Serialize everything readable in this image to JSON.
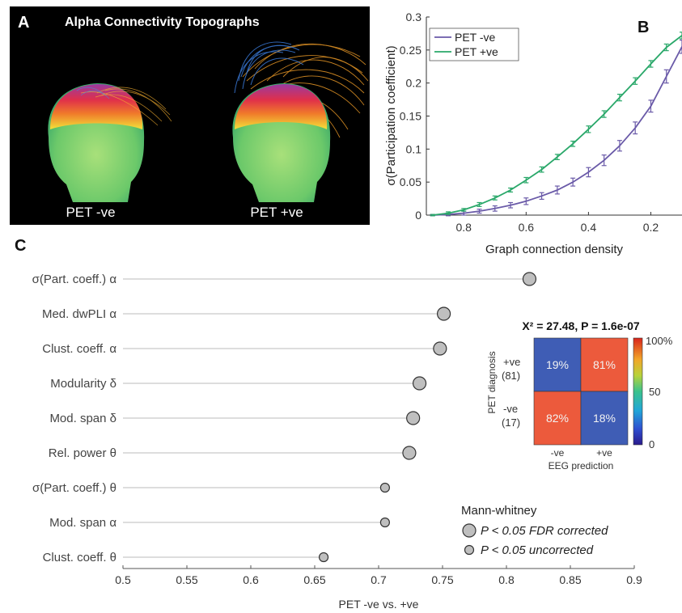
{
  "panel_labels": {
    "a": "A",
    "b": "B",
    "c": "C"
  },
  "panel_a": {
    "title": "Alpha Connectivity Topographs",
    "left_caption": "PET -ve",
    "right_caption": "PET +ve"
  },
  "colors": {
    "pet_neg": "#6a5aa8",
    "pet_pos": "#2aa86a",
    "cell_blue": "#3f5db5",
    "cell_red": "#ec5a3c",
    "marker": "#bfbfbf"
  },
  "chart_data": [
    {
      "type": "line",
      "panel": "B",
      "xlabel": "Graph connection density",
      "ylabel": "σ(Participation coefficient)",
      "x_reversed": true,
      "xlim": [
        0.92,
        0.1
      ],
      "ylim": [
        0,
        0.3
      ],
      "x_ticks": [
        0.8,
        0.6,
        0.4,
        0.2
      ],
      "y_ticks": [
        0,
        0.05,
        0.1,
        0.15,
        0.2,
        0.25,
        0.3
      ],
      "legend_position": "top-left",
      "x": [
        0.9,
        0.85,
        0.8,
        0.75,
        0.7,
        0.65,
        0.6,
        0.55,
        0.5,
        0.45,
        0.4,
        0.35,
        0.3,
        0.25,
        0.2,
        0.15,
        0.1
      ],
      "series": [
        {
          "name": "PET -ve",
          "values": [
            0.0,
            0.001,
            0.003,
            0.006,
            0.01,
            0.015,
            0.021,
            0.029,
            0.038,
            0.05,
            0.065,
            0.083,
            0.105,
            0.132,
            0.165,
            0.21,
            0.255
          ],
          "error": [
            0.001,
            0.002,
            0.003,
            0.003,
            0.004,
            0.004,
            0.005,
            0.005,
            0.006,
            0.006,
            0.007,
            0.008,
            0.008,
            0.009,
            0.009,
            0.01,
            0.01
          ]
        },
        {
          "name": "PET +ve",
          "values": [
            0.0,
            0.003,
            0.008,
            0.016,
            0.026,
            0.038,
            0.053,
            0.069,
            0.088,
            0.108,
            0.13,
            0.153,
            0.178,
            0.203,
            0.229,
            0.254,
            0.272
          ],
          "error": [
            0.001,
            0.002,
            0.002,
            0.003,
            0.003,
            0.003,
            0.004,
            0.004,
            0.004,
            0.004,
            0.005,
            0.005,
            0.005,
            0.005,
            0.005,
            0.005,
            0.005
          ]
        }
      ]
    },
    {
      "type": "scatter",
      "panel": "C",
      "xlabel": "PET -ve vs. +ve",
      "xlim": [
        0.5,
        0.9
      ],
      "x_ticks": [
        "0.5",
        "0.55",
        "0.6",
        "0.65",
        "0.7",
        "0.75",
        "0.8",
        "0.85",
        "0.9"
      ],
      "features": [
        {
          "label": "σ(Part. coeff.) α",
          "value": 0.818,
          "sig": "fdr"
        },
        {
          "label": "Med. dwPLI α",
          "value": 0.751,
          "sig": "fdr"
        },
        {
          "label": "Clust. coeff. α",
          "value": 0.748,
          "sig": "fdr"
        },
        {
          "label": "Modularity δ",
          "value": 0.732,
          "sig": "fdr"
        },
        {
          "label": "Mod. span δ",
          "value": 0.727,
          "sig": "fdr"
        },
        {
          "label": "Rel. power θ",
          "value": 0.724,
          "sig": "fdr"
        },
        {
          "label": "σ(Part. coeff.) θ",
          "value": 0.705,
          "sig": "uncorrected"
        },
        {
          "label": "Mod. span α",
          "value": 0.705,
          "sig": "uncorrected"
        },
        {
          "label": "Clust. coeff. θ",
          "value": 0.657,
          "sig": "uncorrected"
        }
      ],
      "legend": {
        "title": "Mann-whitney",
        "large": "P < 0.05 FDR corrected",
        "small": "P < 0.05 uncorrected",
        "position": "bottom-right"
      }
    },
    {
      "type": "heatmap",
      "panel": "C-inset",
      "title": "X² = 27.48, P = 1.6e-07",
      "ylabel": "PET diagnosis",
      "xlabel": "EEG prediction",
      "row_labels": [
        [
          "+ve",
          "(81)"
        ],
        [
          "-ve",
          "(17)"
        ]
      ],
      "col_labels": [
        "-ve",
        "+ve"
      ],
      "cells": [
        [
          "19%",
          "81%"
        ],
        [
          "82%",
          "18%"
        ]
      ],
      "values": [
        [
          19,
          81
        ],
        [
          82,
          18
        ]
      ],
      "colorbar_ticks": [
        "100%",
        "50",
        "0"
      ],
      "colorbar_range": [
        0,
        100
      ]
    }
  ]
}
